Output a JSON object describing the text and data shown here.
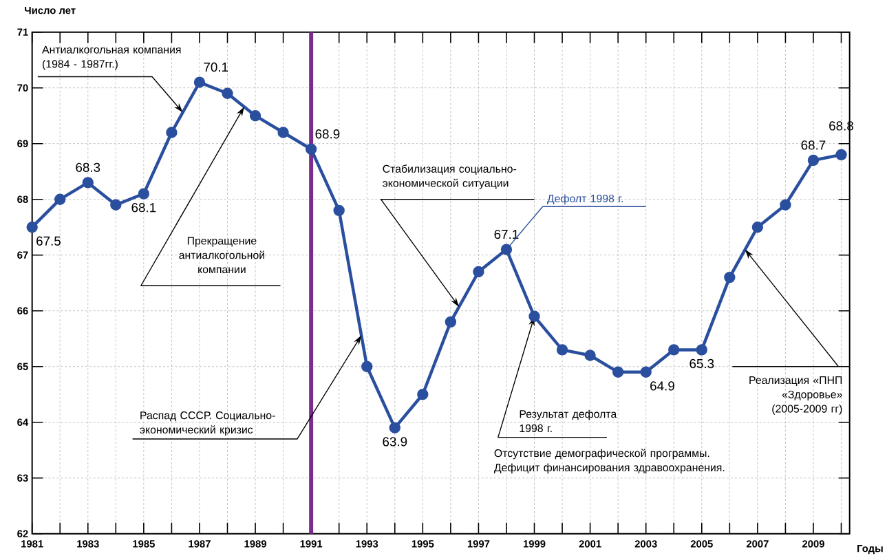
{
  "chart_data": {
    "type": "line",
    "xlabel": "Годы",
    "ylabel": "Число лет",
    "x": [
      1981,
      1982,
      1983,
      1984,
      1985,
      1986,
      1987,
      1988,
      1989,
      1990,
      1991,
      1992,
      1993,
      1994,
      1995,
      1996,
      1997,
      1998,
      1999,
      2000,
      2001,
      2002,
      2003,
      2004,
      2005,
      2006,
      2007,
      2008,
      2009,
      2010
    ],
    "series": [
      {
        "color": "#2a4f9e",
        "values": [
          67.5,
          68.0,
          68.3,
          67.9,
          68.1,
          69.2,
          70.1,
          69.9,
          69.5,
          69.2,
          68.9,
          67.8,
          65.0,
          63.9,
          64.5,
          65.8,
          66.7,
          67.1,
          65.9,
          65.3,
          65.2,
          64.9,
          64.9,
          65.3,
          65.3,
          66.6,
          67.5,
          67.9,
          68.7,
          68.8
        ],
        "value_labels": [
          "67.5",
          null,
          "68.3",
          null,
          "68.1",
          null,
          "70.1",
          null,
          null,
          null,
          "68.9",
          null,
          null,
          "63.9",
          null,
          null,
          null,
          "67.1",
          null,
          null,
          null,
          null,
          "64.9",
          null,
          "65.3",
          null,
          null,
          null,
          "68.7",
          "68.8"
        ]
      }
    ],
    "xlim": [
      1981,
      2010.3
    ],
    "ylim": [
      62,
      71
    ],
    "xticks": [
      1981,
      {
        "value": 1982,
        "label": null
      },
      1983,
      {
        "value": 1984,
        "label": null
      },
      1985,
      {
        "value": 1986,
        "label": null
      },
      1987,
      {
        "value": 1988,
        "label": null
      },
      1989,
      {
        "value": 1990,
        "label": null
      },
      1991,
      {
        "value": 1992,
        "label": null
      },
      1993,
      {
        "value": 1994,
        "label": null
      },
      1995,
      {
        "value": 1996,
        "label": null
      },
      1997,
      {
        "value": 1998,
        "label": null
      },
      1999,
      {
        "value": 2000,
        "label": null
      },
      2001,
      {
        "value": 2002,
        "label": null
      },
      2003,
      {
        "value": 2004,
        "label": null
      },
      2005,
      {
        "value": 2006,
        "label": null
      },
      2007,
      {
        "value": 2008,
        "label": null
      },
      2009,
      {
        "value": 2010,
        "label": null
      }
    ],
    "yticks": [
      62,
      63,
      64,
      65,
      66,
      67,
      68,
      69,
      70,
      71
    ],
    "grid": true,
    "marker": "circle",
    "line_style": "solid",
    "ref_lines": [
      {
        "axis": "x",
        "value": 1991,
        "color": "#7b2d8e"
      }
    ],
    "annotations": [
      {
        "text": "Антиалкогольная компания (1984 - 1987гг.)",
        "x": 1986.4,
        "y": 69.56
      },
      {
        "text": "Прекращение антиалкогольной компании",
        "x": 1988.6,
        "y": 69.66
      },
      {
        "text": "Распад СССР. Социально-экономический кризис",
        "x": 1992.8,
        "y": 65.56
      },
      {
        "text": "Стабилизация социально-экономической ситуации",
        "x": 1996.3,
        "y": 66.07
      },
      {
        "text": "Дефолт 1998 г.",
        "x": 1998,
        "y": 67.1
      },
      {
        "text": "Результат дефолта 1998 г.",
        "x": 1999,
        "y": 65.9
      },
      "Отсутствие демографической программы. Дефицит финансирования здравоохранения.",
      {
        "text": "Реализация «ПНП «Здоровье» (2005-2009 гг)",
        "x": 2006.55,
        "y": 67.1
      }
    ]
  }
}
